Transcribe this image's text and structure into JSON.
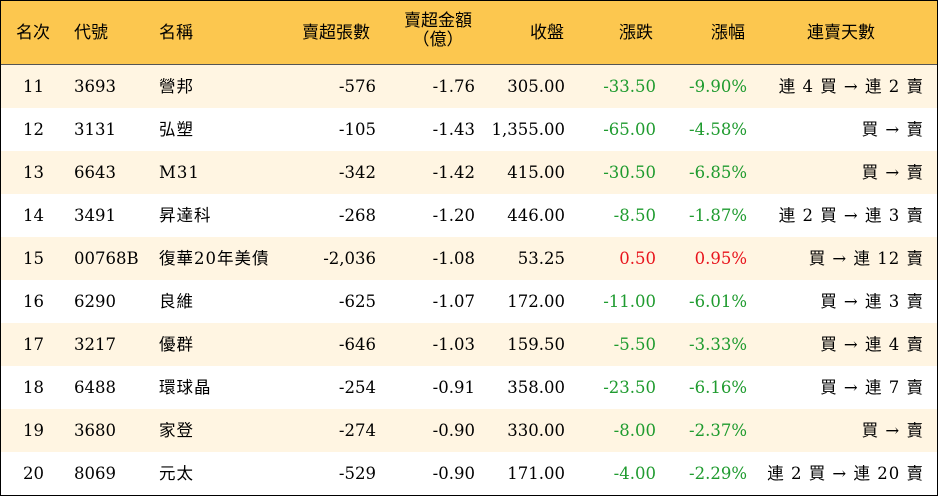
{
  "colors": {
    "header_bg": "#fcc74f",
    "row_alt_bg": "#fff5e2",
    "down": "#1f9b2f",
    "up": "#e8141c"
  },
  "headers": {
    "rank": "名次",
    "code": "代號",
    "name": "名稱",
    "vol": "賣超張數",
    "amt_line1": "賣超金額",
    "amt_line2": "（億）",
    "close": "收盤",
    "chg": "漲跌",
    "pct": "漲幅",
    "streak": "連賣天數"
  },
  "rows": [
    {
      "rank": "11",
      "code": "3693",
      "name": "營邦",
      "vol": "-576",
      "amt": "-1.76",
      "close": "305.00",
      "chg": "-33.50",
      "pct": "-9.90%",
      "streak": "連 4 買 → 連 2 賣",
      "direction": "down"
    },
    {
      "rank": "12",
      "code": "3131",
      "name": "弘塑",
      "vol": "-105",
      "amt": "-1.43",
      "close": "1,355.00",
      "chg": "-65.00",
      "pct": "-4.58%",
      "streak": "買 → 賣",
      "direction": "down"
    },
    {
      "rank": "13",
      "code": "6643",
      "name": "M31",
      "vol": "-342",
      "amt": "-1.42",
      "close": "415.00",
      "chg": "-30.50",
      "pct": "-6.85%",
      "streak": "買 → 賣",
      "direction": "down"
    },
    {
      "rank": "14",
      "code": "3491",
      "name": "昇達科",
      "vol": "-268",
      "amt": "-1.20",
      "close": "446.00",
      "chg": "-8.50",
      "pct": "-1.87%",
      "streak": "連 2 買 → 連 3 賣",
      "direction": "down"
    },
    {
      "rank": "15",
      "code": "00768B",
      "name": "復華20年美債",
      "vol": "-2,036",
      "amt": "-1.08",
      "close": "53.25",
      "chg": "0.50",
      "pct": "0.95%",
      "streak": "買 → 連 12 賣",
      "direction": "up"
    },
    {
      "rank": "16",
      "code": "6290",
      "name": "良維",
      "vol": "-625",
      "amt": "-1.07",
      "close": "172.00",
      "chg": "-11.00",
      "pct": "-6.01%",
      "streak": "買 → 連 3 賣",
      "direction": "down"
    },
    {
      "rank": "17",
      "code": "3217",
      "name": "優群",
      "vol": "-646",
      "amt": "-1.03",
      "close": "159.50",
      "chg": "-5.50",
      "pct": "-3.33%",
      "streak": "買 → 連 4 賣",
      "direction": "down"
    },
    {
      "rank": "18",
      "code": "6488",
      "name": "環球晶",
      "vol": "-254",
      "amt": "-0.91",
      "close": "358.00",
      "chg": "-23.50",
      "pct": "-6.16%",
      "streak": "買 → 連 7 賣",
      "direction": "down"
    },
    {
      "rank": "19",
      "code": "3680",
      "name": "家登",
      "vol": "-274",
      "amt": "-0.90",
      "close": "330.00",
      "chg": "-8.00",
      "pct": "-2.37%",
      "streak": "買 → 賣",
      "direction": "down"
    },
    {
      "rank": "20",
      "code": "8069",
      "name": "元太",
      "vol": "-529",
      "amt": "-0.90",
      "close": "171.00",
      "chg": "-4.00",
      "pct": "-2.29%",
      "streak": "連 2 買 → 連 20 賣",
      "direction": "down"
    }
  ]
}
